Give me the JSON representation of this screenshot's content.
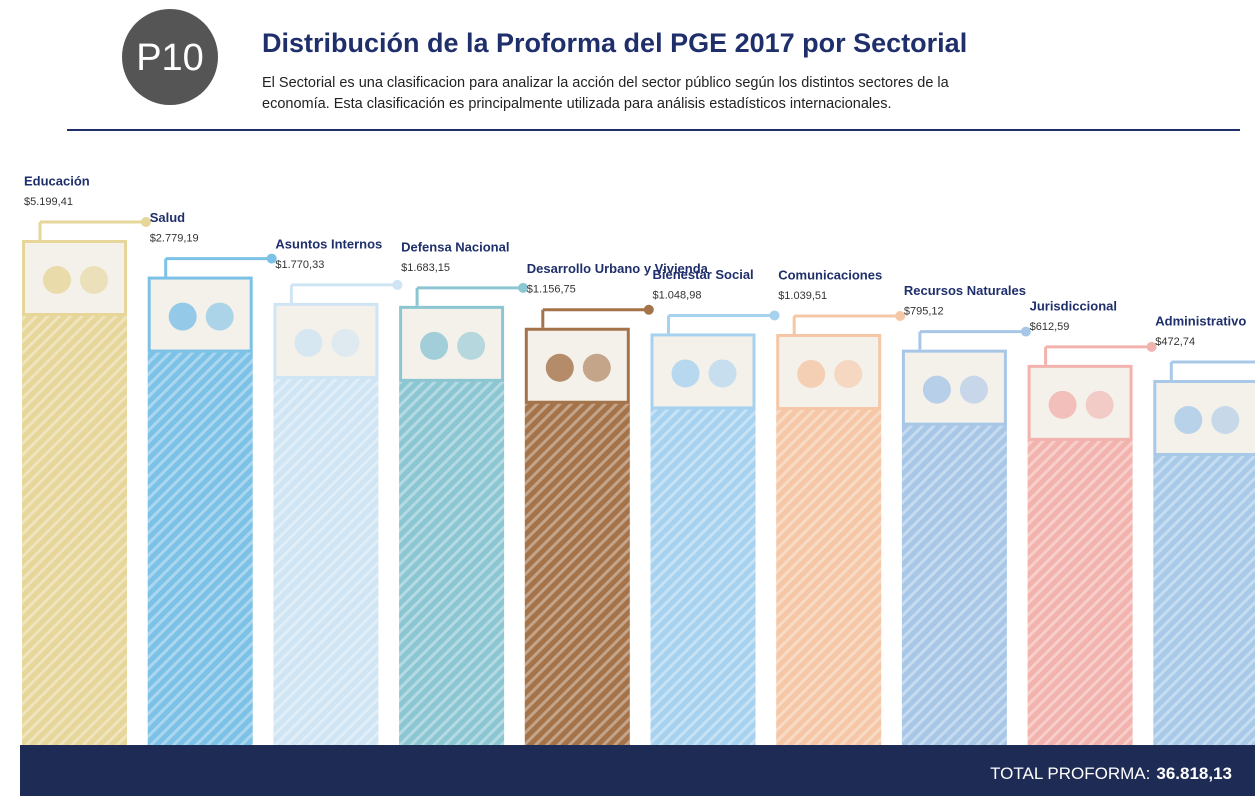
{
  "badge": "P10",
  "chart_data": {
    "type": "bar",
    "title": "Distribución de la Proforma del PGE 2017 por Sectorial",
    "subtitle": [
      "El Sectorial es una clasificacion para analizar la acción del sector público según los distintos sectores de la",
      "economía. Esta clasificación es principalmente utilizada para análisis estadísticos internacionales."
    ],
    "categories": [
      "Educación",
      "Salud",
      "Asuntos Internos",
      "Defensa Nacional",
      "Desarrollo Urbano y Vivienda",
      "Bienestar Social",
      "Comunicaciones",
      "Recursos Naturales",
      "Jurisdiccional",
      "Administrativo"
    ],
    "values": [
      5199.41,
      2779.19,
      1770.33,
      1683.15,
      1156.75,
      1048.98,
      1039.51,
      795.12,
      612.59,
      472.74
    ],
    "value_labels": [
      "$5.199,41",
      "$2.779,19",
      "$1.770,33",
      "$1.683,15",
      "$1.156,75",
      "$1.048,98",
      "$1.039,51",
      "$795,12",
      "$612,59",
      "$472,74"
    ],
    "colors": [
      "#e6d69a",
      "#7cc1e6",
      "#cfe5f4",
      "#8cc6d3",
      "#a4734a",
      "#a7d2ef",
      "#f5c7a6",
      "#a8c7e7",
      "#f2b3ae",
      "#a8cae8"
    ],
    "log_scale": true,
    "total_label": "TOTAL PROFORMA:",
    "total": "36.818,13"
  }
}
